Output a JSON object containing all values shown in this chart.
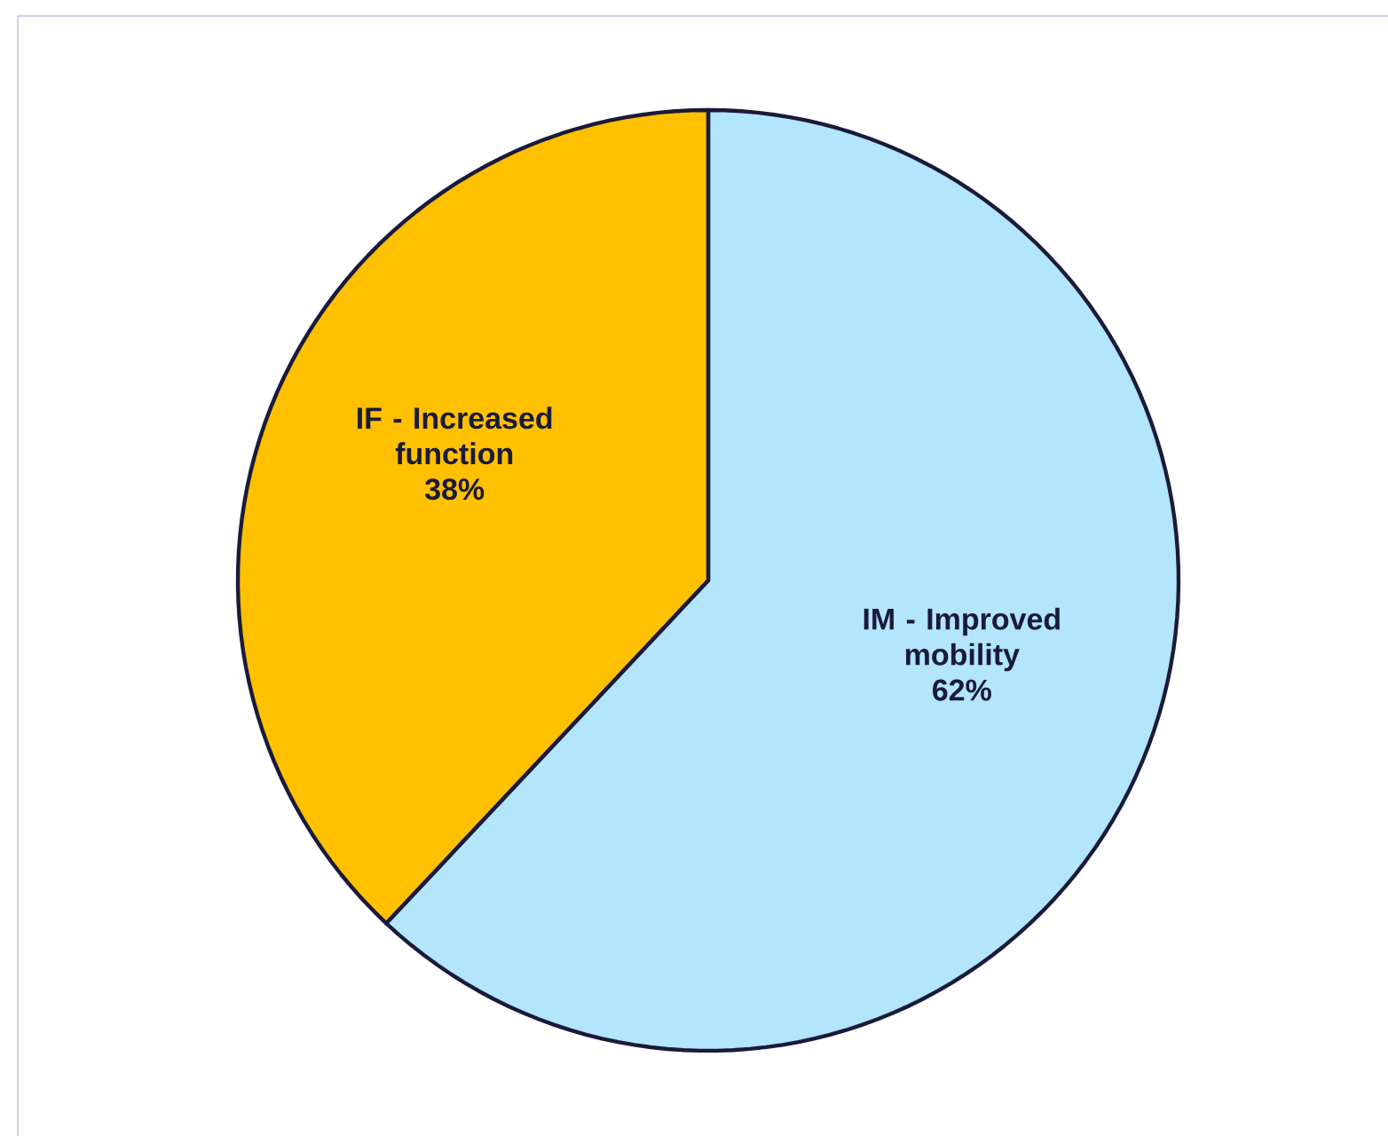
{
  "chart_data": {
    "type": "pie",
    "categories": [
      "IM - Improved mobility",
      "IF - Increased function"
    ],
    "values": [
      62,
      38
    ],
    "value_labels": [
      "62%",
      "38%"
    ],
    "colors": [
      "#b3e5fc",
      "#ffc000"
    ]
  }
}
